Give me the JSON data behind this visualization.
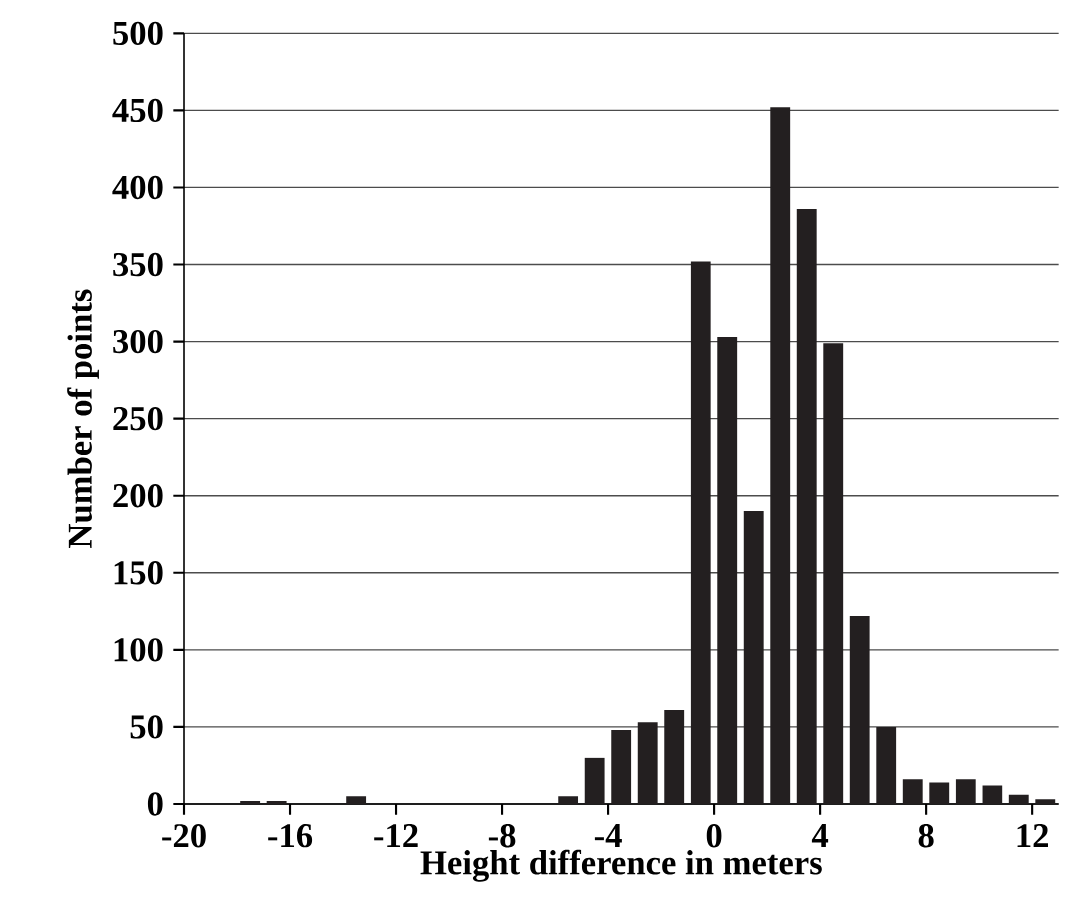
{
  "chart_data": {
    "type": "histogram",
    "xlabel": "Height difference in meters",
    "ylabel": "Number of points",
    "bins": [
      -18,
      -17,
      -16,
      -15,
      -14,
      -13,
      -12,
      -11,
      -10,
      -9,
      -8,
      -7,
      -6,
      -5,
      -4,
      -3,
      -2,
      -1,
      0,
      1,
      2,
      3,
      4,
      5,
      6,
      7,
      8,
      9,
      10,
      11,
      12,
      13
    ],
    "values": [
      2,
      2,
      0,
      0,
      5,
      0,
      0,
      0,
      0,
      0,
      0,
      0,
      5,
      30,
      48,
      53,
      61,
      352,
      303,
      190,
      452,
      386,
      299,
      122,
      50,
      16,
      14,
      16,
      12,
      6,
      3
    ],
    "color": "#231f20",
    "xlim": [
      -20,
      13
    ],
    "ylim": [
      0,
      500
    ],
    "xticks": [
      -20,
      -16,
      -12,
      -8,
      -4,
      0,
      4,
      8,
      12
    ],
    "yticks": [
      0,
      50,
      100,
      150,
      200,
      250,
      300,
      350,
      400,
      450,
      500
    ],
    "grid": "y"
  }
}
